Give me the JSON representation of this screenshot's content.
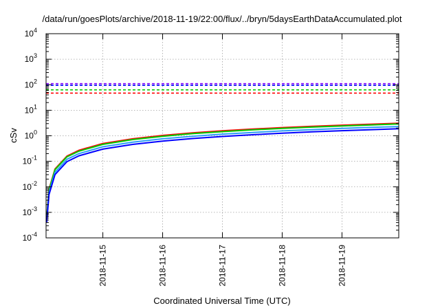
{
  "chart_data": {
    "type": "line",
    "title": "/data/run/goesPlots/archive/2018-11-19/22:00/flux/../bryn/5daysEarthDataAccumulated.plot",
    "xlabel": "Coordinated Universal Time (UTC)",
    "ylabel": "cSv",
    "yscale": "log",
    "ylim_exp": [
      -4,
      4
    ],
    "y_tick_base": "10",
    "y_tick_exponents": [
      "-4",
      "-3",
      "-2",
      "-1",
      "0",
      "1",
      "2",
      "3",
      "4"
    ],
    "xlim_days": [
      14.05,
      19.95
    ],
    "x_tick_labels": [
      "2018-11-15",
      "2018-11-16",
      "2018-11-17",
      "2018-11-18",
      "2018-11-19"
    ],
    "x_tick_days": [
      15,
      16,
      17,
      18,
      19
    ],
    "grid": true,
    "legend": "none",
    "thresholds": [
      {
        "color": "#8000ff",
        "value": 110
      },
      {
        "color": "#0000ff",
        "value": 95
      },
      {
        "color": "#00cc00",
        "value": 63
      },
      {
        "color": "#ff0000",
        "value": 47
      }
    ],
    "series": [
      {
        "color": "#ff0000",
        "x": [
          14.06,
          14.1,
          14.2,
          14.4,
          14.6,
          15.0,
          15.5,
          16.0,
          16.5,
          17.0,
          17.5,
          18.0,
          18.5,
          19.0,
          19.5,
          19.95
        ],
        "y": [
          0.0006,
          0.008,
          0.05,
          0.16,
          0.27,
          0.5,
          0.76,
          1.03,
          1.3,
          1.56,
          1.82,
          2.09,
          2.35,
          2.6,
          2.86,
          3.1
        ]
      },
      {
        "color": "#00cc00",
        "x": [
          14.06,
          14.1,
          14.2,
          14.4,
          14.6,
          15.0,
          15.5,
          16.0,
          16.5,
          17.0,
          17.5,
          18.0,
          18.5,
          19.0,
          19.5,
          19.95
        ],
        "y": [
          0.0006,
          0.0075,
          0.047,
          0.15,
          0.25,
          0.46,
          0.71,
          0.96,
          1.21,
          1.45,
          1.7,
          1.94,
          2.19,
          2.43,
          2.67,
          2.9
        ]
      },
      {
        "color": "#2a9df4",
        "x": [
          14.06,
          14.1,
          14.2,
          14.4,
          14.6,
          15.0,
          15.5,
          16.0,
          16.5,
          17.0,
          17.5,
          18.0,
          18.5,
          19.0,
          19.5,
          19.95
        ],
        "y": [
          0.0005,
          0.006,
          0.037,
          0.12,
          0.2,
          0.37,
          0.56,
          0.76,
          0.96,
          1.16,
          1.35,
          1.55,
          1.74,
          1.94,
          2.13,
          2.3
        ]
      },
      {
        "color": "#0000ff",
        "x": [
          14.06,
          14.1,
          14.2,
          14.4,
          14.6,
          15.0,
          15.5,
          16.0,
          16.5,
          17.0,
          17.5,
          18.0,
          18.5,
          19.0,
          19.5,
          19.95
        ],
        "y": [
          0.0004,
          0.005,
          0.03,
          0.097,
          0.165,
          0.3,
          0.46,
          0.62,
          0.78,
          0.94,
          1.1,
          1.26,
          1.42,
          1.58,
          1.74,
          1.88
        ]
      }
    ]
  }
}
